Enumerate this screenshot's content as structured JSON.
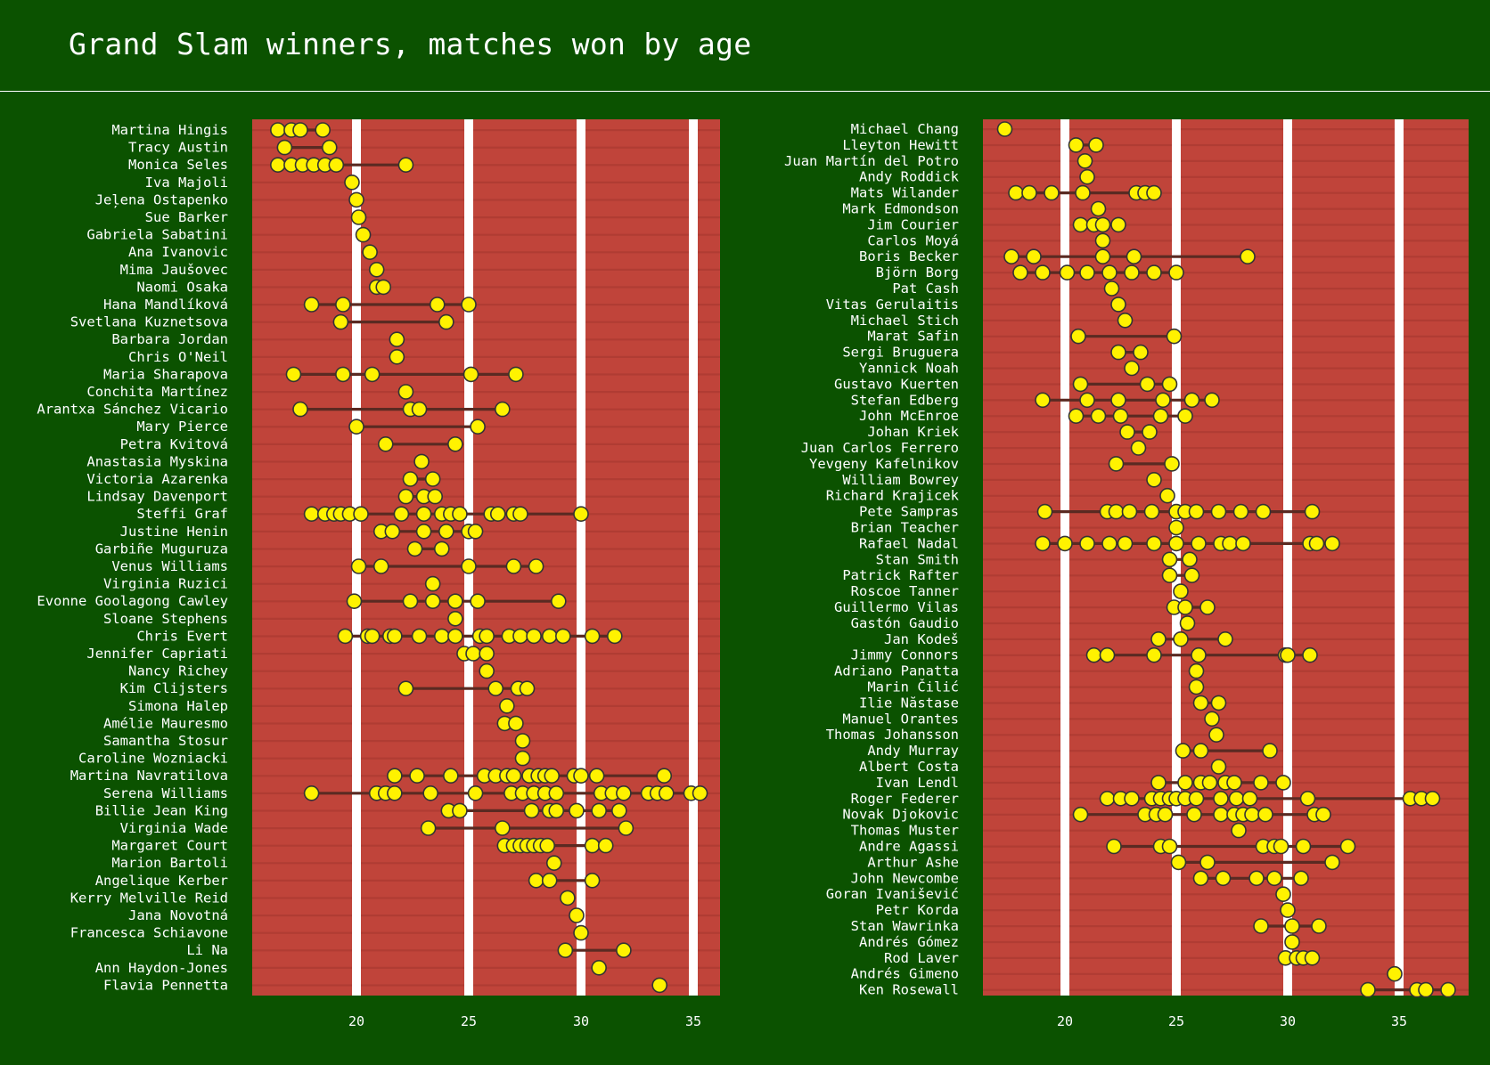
{
  "title": "Grand Slam winners, matches won by age",
  "colors": {
    "background": "#0b5200",
    "court": "#c0443a",
    "court_stripe": "#b03c33",
    "gridline": "#ffffff",
    "connector": "#5a2a22",
    "dot_fill": "#fff200",
    "dot_stroke": "#333333",
    "text": "#ffffff"
  },
  "chart_data": [
    {
      "type": "scatter",
      "panel": "left",
      "title": "",
      "xlabel": "",
      "ylabel": "",
      "xlim": [
        15.4,
        36.2
      ],
      "xticks": [
        20,
        25,
        30,
        35
      ],
      "grid": true,
      "players": [
        {
          "name": "Martina Hingis",
          "ages": [
            16.5,
            17.1,
            17.5,
            18.5
          ]
        },
        {
          "name": "Tracy Austin",
          "ages": [
            16.8,
            18.8
          ]
        },
        {
          "name": "Monica Seles",
          "ages": [
            16.5,
            17.1,
            17.6,
            18.1,
            18.6,
            19.1,
            22.2
          ]
        },
        {
          "name": "Iva Majoli",
          "ages": [
            19.8
          ]
        },
        {
          "name": "Jeļena Ostapenko",
          "ages": [
            20.0
          ]
        },
        {
          "name": "Sue Barker",
          "ages": [
            20.1
          ]
        },
        {
          "name": "Gabriela Sabatini",
          "ages": [
            20.3
          ]
        },
        {
          "name": "Ana Ivanovic",
          "ages": [
            20.6
          ]
        },
        {
          "name": "Mima Jaušovec",
          "ages": [
            20.9
          ]
        },
        {
          "name": "Naomi Osaka",
          "ages": [
            20.9,
            21.2
          ]
        },
        {
          "name": "Hana Mandlíková",
          "ages": [
            18.0,
            19.4,
            23.6,
            25.0
          ]
        },
        {
          "name": "Svetlana Kuznetsova",
          "ages": [
            19.3,
            24.0
          ]
        },
        {
          "name": "Barbara Jordan",
          "ages": [
            21.8
          ]
        },
        {
          "name": "Chris O'Neil",
          "ages": [
            21.8
          ]
        },
        {
          "name": "Maria Sharapova",
          "ages": [
            17.2,
            19.4,
            20.7,
            25.1,
            27.1
          ]
        },
        {
          "name": "Conchita Martínez",
          "ages": [
            22.2
          ]
        },
        {
          "name": "Arantxa Sánchez Vicario",
          "ages": [
            17.5,
            22.4,
            22.8,
            26.5
          ]
        },
        {
          "name": "Mary Pierce",
          "ages": [
            20.0,
            25.4
          ]
        },
        {
          "name": "Petra Kvitová",
          "ages": [
            21.3,
            24.4
          ]
        },
        {
          "name": "Anastasia Myskina",
          "ages": [
            22.9
          ]
        },
        {
          "name": "Victoria Azarenka",
          "ages": [
            22.4,
            23.4
          ]
        },
        {
          "name": "Lindsay Davenport",
          "ages": [
            22.2,
            23.0,
            23.5
          ]
        },
        {
          "name": "Steffi Graf",
          "ages": [
            18.0,
            18.6,
            19.0,
            19.3,
            19.7,
            20.2,
            22.0,
            23.0,
            23.8,
            24.2,
            24.6,
            26.0,
            26.3,
            27.0,
            27.3,
            30.0
          ]
        },
        {
          "name": "Justine Henin",
          "ages": [
            21.1,
            21.6,
            23.0,
            24.0,
            25.0,
            25.3
          ]
        },
        {
          "name": "Garbiñe Muguruza",
          "ages": [
            22.6,
            23.8
          ]
        },
        {
          "name": "Venus Williams",
          "ages": [
            20.1,
            21.1,
            25.0,
            27.0,
            28.0
          ]
        },
        {
          "name": "Virginia Ruzici",
          "ages": [
            23.4
          ]
        },
        {
          "name": "Evonne Goolagong Cawley",
          "ages": [
            19.9,
            22.4,
            23.4,
            24.4,
            25.4,
            29.0
          ]
        },
        {
          "name": "Sloane Stephens",
          "ages": [
            24.4
          ]
        },
        {
          "name": "Chris Evert",
          "ages": [
            19.5,
            20.5,
            20.7,
            21.5,
            21.7,
            22.8,
            23.8,
            24.4,
            25.5,
            25.8,
            26.8,
            27.3,
            27.9,
            28.6,
            29.2,
            30.5,
            31.5
          ]
        },
        {
          "name": "Jennifer Capriati",
          "ages": [
            24.8,
            25.2,
            25.8
          ]
        },
        {
          "name": "Nancy Richey",
          "ages": [
            25.8
          ]
        },
        {
          "name": "Kim Clijsters",
          "ages": [
            22.2,
            26.2,
            27.2,
            27.6
          ]
        },
        {
          "name": "Simona Halep",
          "ages": [
            26.7
          ]
        },
        {
          "name": "Amélie Mauresmo",
          "ages": [
            26.6,
            27.1
          ]
        },
        {
          "name": "Samantha Stosur",
          "ages": [
            27.4
          ]
        },
        {
          "name": "Caroline Wozniacki",
          "ages": [
            27.4
          ]
        },
        {
          "name": "Martina Navratilova",
          "ages": [
            21.7,
            22.7,
            24.2,
            25.7,
            26.2,
            26.7,
            27.0,
            27.7,
            28.1,
            28.4,
            28.7,
            29.7,
            30.0,
            30.7,
            33.7
          ]
        },
        {
          "name": "Serena Williams",
          "ages": [
            18.0,
            20.9,
            21.3,
            21.7,
            23.3,
            25.3,
            26.9,
            27.4,
            27.9,
            28.4,
            28.9,
            30.9,
            31.4,
            31.9,
            33.0,
            33.4,
            33.8,
            34.9,
            35.3
          ]
        },
        {
          "name": "Billie Jean King",
          "ages": [
            24.1,
            24.6,
            27.8,
            28.6,
            28.9,
            29.8,
            30.8,
            31.7
          ]
        },
        {
          "name": "Virginia Wade",
          "ages": [
            23.2,
            26.5,
            32.0
          ]
        },
        {
          "name": "Margaret Court",
          "ages": [
            26.6,
            27.0,
            27.3,
            27.6,
            27.9,
            28.2,
            28.5,
            30.5,
            31.1
          ]
        },
        {
          "name": "Marion Bartoli",
          "ages": [
            28.8
          ]
        },
        {
          "name": "Angelique Kerber",
          "ages": [
            28.0,
            28.6,
            30.5
          ]
        },
        {
          "name": "Kerry Melville Reid",
          "ages": [
            29.4
          ]
        },
        {
          "name": "Jana Novotná",
          "ages": [
            29.8
          ]
        },
        {
          "name": "Francesca Schiavone",
          "ages": [
            30.0
          ]
        },
        {
          "name": "Li Na",
          "ages": [
            29.3,
            31.9
          ]
        },
        {
          "name": "Ann Haydon-Jones",
          "ages": [
            30.8
          ]
        },
        {
          "name": "Flavia Pennetta",
          "ages": [
            33.5
          ]
        }
      ]
    },
    {
      "type": "scatter",
      "panel": "right",
      "title": "",
      "xlabel": "",
      "ylabel": "",
      "xlim": [
        16.3,
        38.0
      ],
      "xticks": [
        20,
        25,
        30,
        35
      ],
      "grid": true,
      "players": [
        {
          "name": "Michael Chang",
          "ages": [
            17.3
          ]
        },
        {
          "name": "Lleyton Hewitt",
          "ages": [
            20.5,
            21.4
          ]
        },
        {
          "name": "Juan Martín del Potro",
          "ages": [
            20.9
          ]
        },
        {
          "name": "Andy Roddick",
          "ages": [
            21.0
          ]
        },
        {
          "name": "Mats Wilander",
          "ages": [
            17.8,
            18.4,
            19.4,
            20.8,
            23.2,
            23.6,
            24.0
          ]
        },
        {
          "name": "Mark Edmondson",
          "ages": [
            21.5
          ]
        },
        {
          "name": "Jim Courier",
          "ages": [
            20.7,
            21.3,
            21.7,
            22.4
          ]
        },
        {
          "name": "Carlos Moyá",
          "ages": [
            21.7
          ]
        },
        {
          "name": "Boris Becker",
          "ages": [
            17.6,
            18.6,
            21.7,
            23.1,
            28.2
          ]
        },
        {
          "name": "Björn Borg",
          "ages": [
            18.0,
            19.0,
            20.1,
            21.0,
            22.0,
            23.0,
            24.0,
            25.0
          ]
        },
        {
          "name": "Pat Cash",
          "ages": [
            22.1
          ]
        },
        {
          "name": "Vitas Gerulaitis",
          "ages": [
            22.4
          ]
        },
        {
          "name": "Michael Stich",
          "ages": [
            22.7
          ]
        },
        {
          "name": "Marat Safin",
          "ages": [
            20.6,
            24.9
          ]
        },
        {
          "name": "Sergi Bruguera",
          "ages": [
            22.4,
            23.4
          ]
        },
        {
          "name": "Yannick Noah",
          "ages": [
            23.0
          ]
        },
        {
          "name": "Gustavo Kuerten",
          "ages": [
            20.7,
            23.7,
            24.7
          ]
        },
        {
          "name": "Stefan Edberg",
          "ages": [
            19.0,
            21.0,
            22.4,
            24.4,
            25.7,
            26.6
          ]
        },
        {
          "name": "John McEnroe",
          "ages": [
            20.5,
            21.5,
            22.5,
            24.3,
            25.4
          ]
        },
        {
          "name": "Johan Kriek",
          "ages": [
            22.8,
            23.8
          ]
        },
        {
          "name": "Juan Carlos Ferrero",
          "ages": [
            23.3
          ]
        },
        {
          "name": "Yevgeny Kafelnikov",
          "ages": [
            22.3,
            24.8
          ]
        },
        {
          "name": "William Bowrey",
          "ages": [
            24.0
          ]
        },
        {
          "name": "Richard Krajicek",
          "ages": [
            24.6
          ]
        },
        {
          "name": "Pete Sampras",
          "ages": [
            19.1,
            21.9,
            22.3,
            22.9,
            23.9,
            25.0,
            25.4,
            25.9,
            26.9,
            27.9,
            28.9,
            31.1
          ]
        },
        {
          "name": "Brian Teacher",
          "ages": [
            25.0
          ]
        },
        {
          "name": "Rafael Nadal",
          "ages": [
            19.0,
            20.0,
            21.0,
            22.0,
            22.7,
            24.0,
            25.0,
            26.0,
            27.0,
            27.4,
            28.0,
            31.0,
            31.3,
            32.0
          ]
        },
        {
          "name": "Stan Smith",
          "ages": [
            24.7,
            25.6
          ]
        },
        {
          "name": "Patrick Rafter",
          "ages": [
            24.7,
            25.7
          ]
        },
        {
          "name": "Roscoe Tanner",
          "ages": [
            25.2
          ]
        },
        {
          "name": "Guillermo Vilas",
          "ages": [
            24.9,
            25.4,
            26.4
          ]
        },
        {
          "name": "Gastón Gaudio",
          "ages": [
            25.5
          ]
        },
        {
          "name": "Jan Kodeš",
          "ages": [
            24.2,
            25.2,
            27.2
          ]
        },
        {
          "name": "Jimmy Connors",
          "ages": [
            21.3,
            21.9,
            24.0,
            26.0,
            29.9,
            30.0,
            31.0
          ]
        },
        {
          "name": "Adriano Panatta",
          "ages": [
            25.9
          ]
        },
        {
          "name": "Marin Čilić",
          "ages": [
            25.9
          ]
        },
        {
          "name": "Ilie Năstase",
          "ages": [
            26.1,
            26.9
          ]
        },
        {
          "name": "Manuel Orantes",
          "ages": [
            26.6
          ]
        },
        {
          "name": "Thomas Johansson",
          "ages": [
            26.8
          ]
        },
        {
          "name": "Andy Murray",
          "ages": [
            25.3,
            26.1,
            29.2
          ]
        },
        {
          "name": "Albert Costa",
          "ages": [
            26.9
          ]
        },
        {
          "name": "Ivan Lendl",
          "ages": [
            24.2,
            25.4,
            26.1,
            26.5,
            27.2,
            27.6,
            28.8,
            29.8
          ]
        },
        {
          "name": "Roger Federer",
          "ages": [
            21.9,
            22.5,
            23.0,
            23.9,
            24.3,
            24.7,
            25.0,
            25.4,
            25.9,
            27.0,
            27.7,
            28.3,
            30.9,
            35.5,
            36.0,
            36.5
          ]
        },
        {
          "name": "Novak Djokovic",
          "ages": [
            20.7,
            23.6,
            24.1,
            24.5,
            25.8,
            27.0,
            27.6,
            28.0,
            28.4,
            29.0,
            31.2,
            31.6
          ]
        },
        {
          "name": "Thomas Muster",
          "ages": [
            27.8
          ]
        },
        {
          "name": "Andre Agassi",
          "ages": [
            22.2,
            24.3,
            24.7,
            28.9,
            29.4,
            29.7,
            30.7,
            32.7
          ]
        },
        {
          "name": "Arthur Ashe",
          "ages": [
            25.1,
            26.4,
            32.0
          ]
        },
        {
          "name": "John Newcombe",
          "ages": [
            26.1,
            27.1,
            28.6,
            29.4,
            30.6
          ]
        },
        {
          "name": "Goran Ivanišević",
          "ages": [
            29.8
          ]
        },
        {
          "name": "Petr Korda",
          "ages": [
            30.0
          ]
        },
        {
          "name": "Stan Wawrinka",
          "ages": [
            28.8,
            30.2,
            31.4
          ]
        },
        {
          "name": "Andrés Gómez",
          "ages": [
            30.2
          ]
        },
        {
          "name": "Rod Laver",
          "ages": [
            29.9,
            30.4,
            30.7,
            31.1
          ]
        },
        {
          "name": "Andrés Gimeno",
          "ages": [
            34.8
          ]
        },
        {
          "name": "Ken Rosewall",
          "ages": [
            33.6,
            35.8,
            36.2,
            37.2
          ]
        }
      ]
    }
  ]
}
